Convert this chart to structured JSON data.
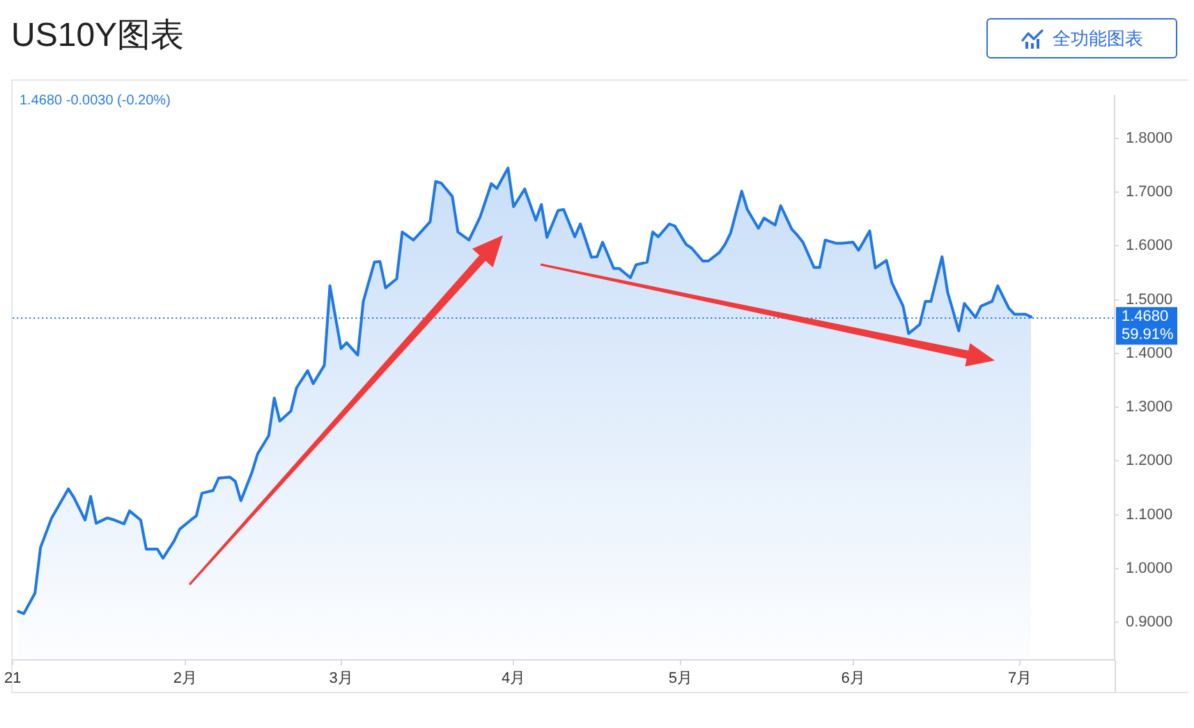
{
  "chart_data": {
    "type": "area",
    "title": "US10Y图表",
    "subtitle": "1.4680 -0.0030 (-0.20%)",
    "annotations": [
      "全功能图表"
    ],
    "x": [
      "2021-01-02",
      "2021-01-03",
      "2021-01-05",
      "2021-01-06",
      "2021-01-08",
      "2021-01-11",
      "2021-01-12",
      "2021-01-14",
      "2021-01-15",
      "2021-01-16",
      "2021-01-18",
      "2021-01-19",
      "2021-01-21",
      "2021-01-22",
      "2021-01-24",
      "2021-01-25",
      "2021-01-27",
      "2021-01-28",
      "2021-01-30",
      "2021-01-31",
      "2021-02-02",
      "2021-02-03",
      "2021-02-04",
      "2021-02-06",
      "2021-02-07",
      "2021-02-09",
      "2021-02-10",
      "2021-02-11",
      "2021-02-13",
      "2021-02-14",
      "2021-02-16",
      "2021-02-17",
      "2021-02-18",
      "2021-02-20",
      "2021-02-21",
      "2021-02-23",
      "2021-02-24",
      "2021-02-26",
      "2021-02-27",
      "2021-03-01",
      "2021-03-02",
      "2021-03-04",
      "2021-03-05",
      "2021-03-07",
      "2021-03-08",
      "2021-03-09",
      "2021-03-11",
      "2021-03-12",
      "2021-03-14",
      "2021-03-15",
      "2021-03-17",
      "2021-03-18",
      "2021-03-19",
      "2021-03-21",
      "2021-03-22",
      "2021-03-24",
      "2021-03-26",
      "2021-03-28",
      "2021-03-29",
      "2021-03-31",
      "2021-04-01",
      "2021-04-03",
      "2021-04-05",
      "2021-04-06",
      "2021-04-07",
      "2021-04-09",
      "2021-04-10",
      "2021-04-12",
      "2021-04-13",
      "2021-04-15",
      "2021-04-16",
      "2021-04-17",
      "2021-04-19",
      "2021-04-20",
      "2021-04-22",
      "2021-04-23",
      "2021-04-25",
      "2021-04-26",
      "2021-04-27",
      "2021-04-29",
      "2021-04-30",
      "2021-05-02",
      "2021-05-03",
      "2021-05-05",
      "2021-05-06",
      "2021-05-08",
      "2021-05-09",
      "2021-05-10",
      "2021-05-12",
      "2021-05-13",
      "2021-05-15",
      "2021-05-16",
      "2021-05-18",
      "2021-05-19",
      "2021-05-21",
      "2021-05-22",
      "2021-05-23",
      "2021-05-25",
      "2021-05-26",
      "2021-05-27",
      "2021-05-29",
      "2021-05-30",
      "2021-06-01",
      "2021-06-02",
      "2021-06-04",
      "2021-06-05",
      "2021-06-07",
      "2021-06-08",
      "2021-06-10",
      "2021-06-11",
      "2021-06-13",
      "2021-06-14",
      "2021-06-15",
      "2021-06-17",
      "2021-06-18",
      "2021-06-20",
      "2021-06-21",
      "2021-06-23",
      "2021-06-24",
      "2021-06-26",
      "2021-06-27",
      "2021-06-29",
      "2021-06-30",
      "2021-07-02",
      "2021-07-03"
    ],
    "series": [
      {
        "color": "#1f78e4",
        "values": [
          0.92,
          0.916,
          0.954,
          1.039,
          1.094,
          1.148,
          1.132,
          1.09,
          1.134,
          1.084,
          1.094,
          1.091,
          1.083,
          1.107,
          1.09,
          1.036,
          1.036,
          1.019,
          1.051,
          1.073,
          1.09,
          1.098,
          1.14,
          1.145,
          1.168,
          1.17,
          1.162,
          1.126,
          1.179,
          1.213,
          1.247,
          1.317,
          1.274,
          1.293,
          1.336,
          1.368,
          1.344,
          1.378,
          1.526,
          1.409,
          1.42,
          1.397,
          1.497,
          1.57,
          1.571,
          1.522,
          1.539,
          1.626,
          1.611,
          1.622,
          1.645,
          1.72,
          1.717,
          1.692,
          1.626,
          1.611,
          1.654,
          1.716,
          1.707,
          1.745,
          1.673,
          1.706,
          1.648,
          1.677,
          1.616,
          1.666,
          1.668,
          1.617,
          1.641,
          1.579,
          1.58,
          1.607,
          1.558,
          1.558,
          1.541,
          1.565,
          1.57,
          1.626,
          1.617,
          1.641,
          1.637,
          1.603,
          1.596,
          1.572,
          1.572,
          1.588,
          1.603,
          1.624,
          1.702,
          1.668,
          1.633,
          1.652,
          1.639,
          1.675,
          1.631,
          1.62,
          1.607,
          1.56,
          1.56,
          1.611,
          1.605,
          1.605,
          1.607,
          1.592,
          1.628,
          1.559,
          1.573,
          1.531,
          1.488,
          1.437,
          1.454,
          1.497,
          1.497,
          1.58,
          1.514,
          1.442,
          1.493,
          1.467,
          1.488,
          1.497,
          1.526,
          1.484,
          1.473,
          1.473,
          1.468
        ]
      }
    ],
    "xlim": [
      "2021-01-01",
      "2021-07-18"
    ],
    "xticks": [
      {
        "value": "2021-01-01",
        "label": "21"
      },
      {
        "value": "2021-02-01",
        "label": "2月"
      },
      {
        "value": "2021-03-01",
        "label": "3月"
      },
      {
        "value": "2021-04-01",
        "label": "4月"
      },
      {
        "value": "2021-05-01",
        "label": "5月"
      },
      {
        "value": "2021-06-01",
        "label": "6月"
      },
      {
        "value": "2021-07-01",
        "label": "7月"
      }
    ],
    "ylim": [
      0.83,
      1.88
    ],
    "yticks": [
      {
        "value": 0.9,
        "label": "0.9000"
      },
      {
        "value": 1.0,
        "label": "1.0000"
      },
      {
        "value": 1.1,
        "label": "1.1000"
      },
      {
        "value": 1.2,
        "label": "1.2000"
      },
      {
        "value": 1.3,
        "label": "1.3000"
      },
      {
        "value": 1.4,
        "label": "1.4000"
      },
      {
        "value": 1.5,
        "label": "1.5000"
      },
      {
        "value": 1.6,
        "label": "1.6000"
      },
      {
        "value": 1.7,
        "label": "1.7000"
      },
      {
        "value": 1.8,
        "label": "1.8000"
      }
    ],
    "ref_lines": [
      {
        "axis": "y",
        "value": 1.468,
        "label": "1.4680\n59.91%",
        "color": "#1a73e8",
        "line_style": "dotted"
      }
    ]
  }
}
